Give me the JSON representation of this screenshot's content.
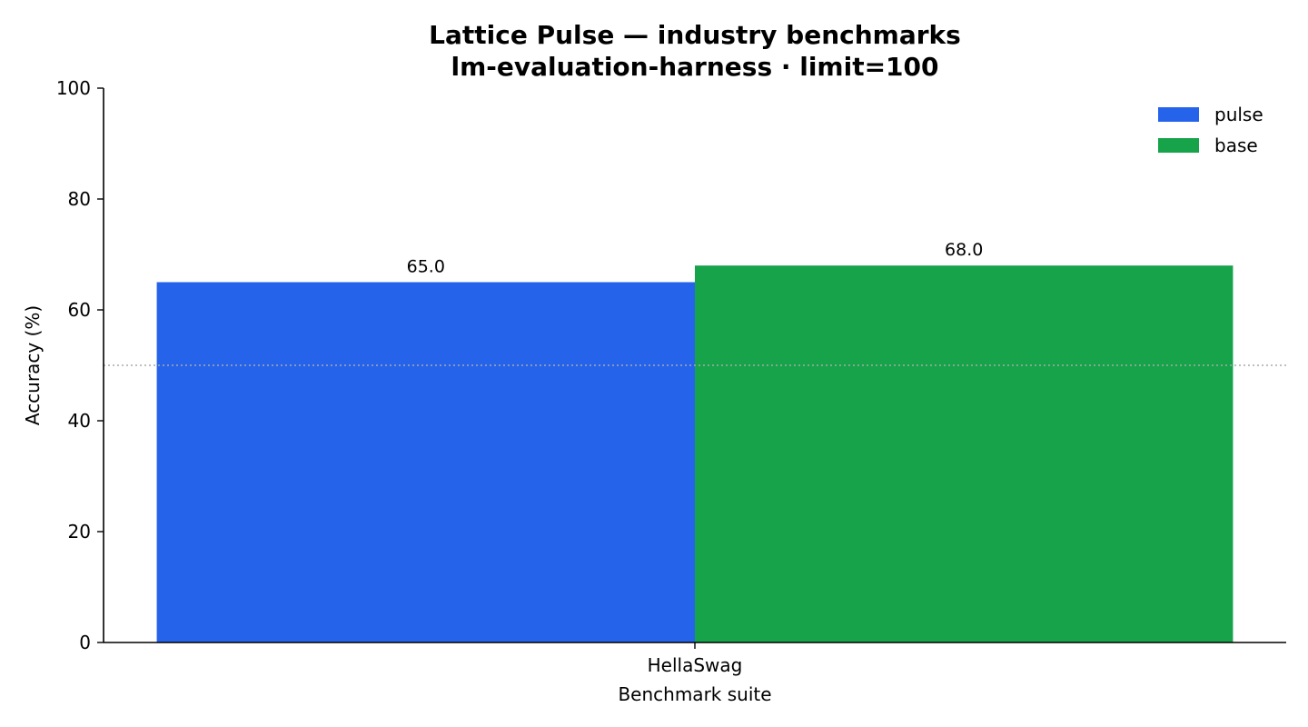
{
  "chart_data": {
    "type": "bar",
    "title_line1": "Lattice Pulse — industry benchmarks",
    "title_line2": "lm-evaluation-harness · limit=100",
    "xlabel": "Benchmark suite",
    "ylabel": "Accuracy (%)",
    "categories": [
      "HellaSwag"
    ],
    "series": [
      {
        "name": "pulse",
        "color": "#2563eb",
        "values": [
          65.0
        ]
      },
      {
        "name": "base",
        "color": "#16a34a",
        "values": [
          68.0
        ]
      }
    ],
    "ylim": [
      0,
      100
    ],
    "yticks": [
      0,
      20,
      40,
      60,
      80,
      100
    ],
    "reference_line": {
      "y": 50,
      "style": "dotted",
      "color": "#aaaaaa"
    },
    "legend_position": "upper right",
    "grid": false
  }
}
